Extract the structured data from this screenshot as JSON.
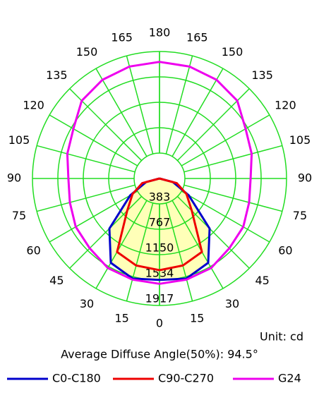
{
  "chart_data": {
    "type": "polar",
    "unit_label": "Unit: cd",
    "annotation": "Average Diffuse Angle(50%): 94.5°",
    "x": [
      0,
      15,
      30,
      45,
      60,
      75,
      90,
      105,
      120,
      135,
      150,
      165,
      180
    ],
    "rlim": [
      0,
      1917
    ],
    "rticks": [
      383,
      767,
      1150,
      1534,
      1917
    ],
    "grid": true,
    "grid_color": "#22dd22",
    "fill_color": "#ffffb8",
    "series": [
      {
        "name": "C0-C180",
        "color": "#0000cc",
        "values": [
          1530,
          1565,
          1470,
          1070,
          510,
          210,
          0,
          0,
          0,
          0,
          0,
          0,
          0
        ]
      },
      {
        "name": "C90-C270",
        "color": "#ee0000",
        "values": [
          1385,
          1360,
          1280,
          690,
          470,
          270,
          0,
          0,
          0,
          0,
          0,
          0,
          0
        ]
      },
      {
        "name": "G24",
        "color": "#ee00ee",
        "values": [
          1590,
          1580,
          1560,
          1490,
          1460,
          1400,
          1375,
          1440,
          1500,
          1660,
          1720,
          1750,
          1760
        ]
      }
    ]
  }
}
